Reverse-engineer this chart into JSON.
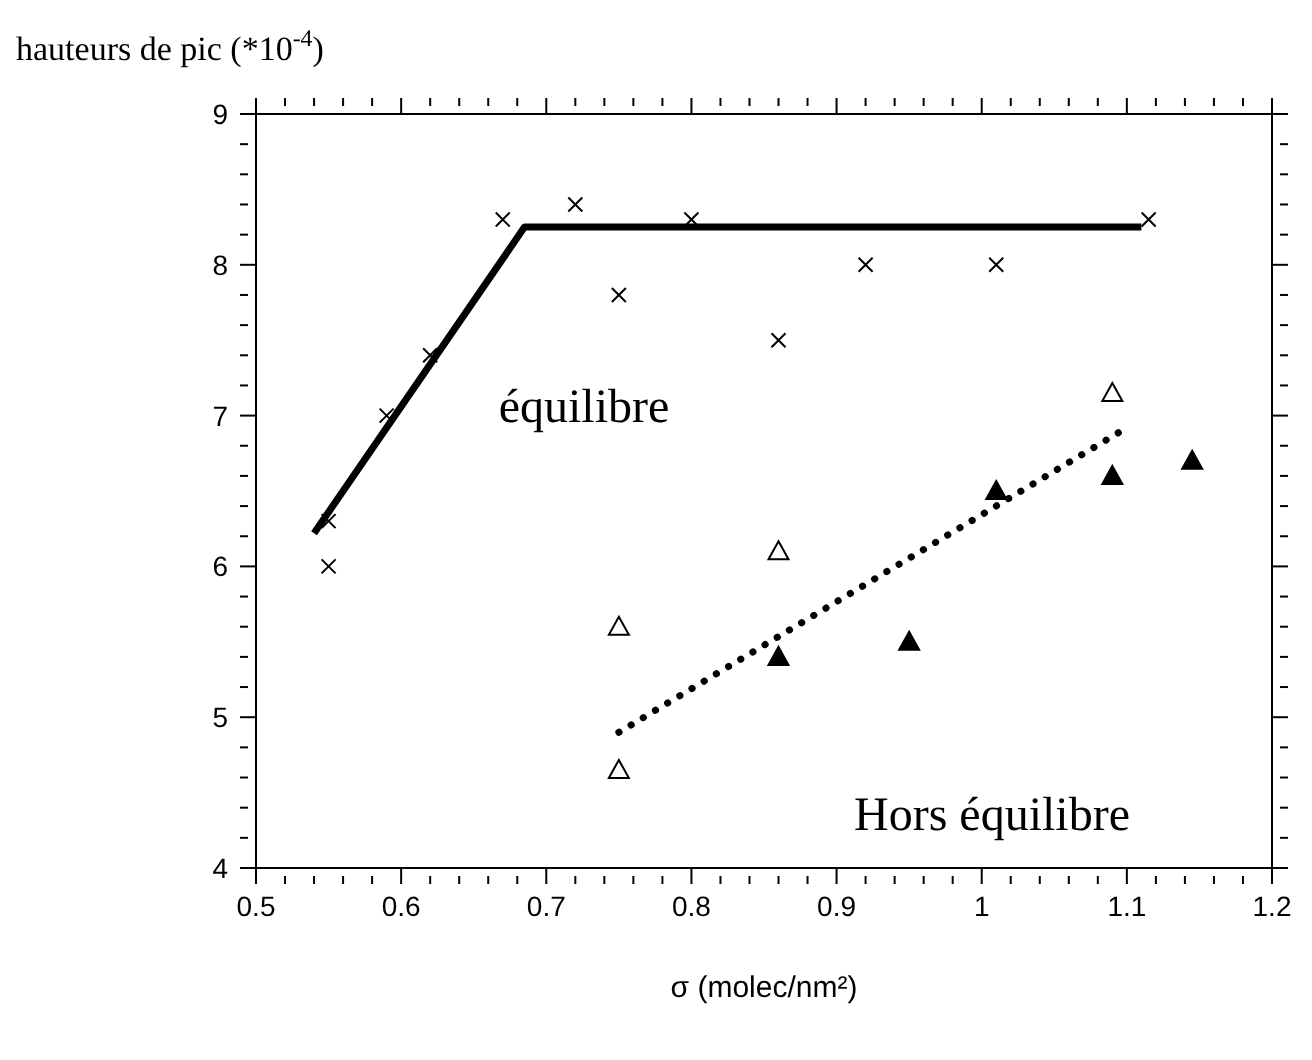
{
  "chart_data": {
    "type": "scatter",
    "ylabel": "hauteurs de pic (*10$^{-4}$)",
    "xlabel": "σ (molec/nm²)",
    "xlim": [
      0.5,
      1.2
    ],
    "ylim": [
      4,
      9
    ],
    "xticks": [
      0.5,
      {
        "value": 0.52,
        "label": null
      },
      {
        "value": 0.54,
        "label": null
      },
      {
        "value": 0.56,
        "label": null
      },
      {
        "value": 0.58,
        "label": null
      },
      0.6,
      {
        "value": 0.62,
        "label": null
      },
      {
        "value": 0.64,
        "label": null
      },
      {
        "value": 0.66,
        "label": null
      },
      {
        "value": 0.68,
        "label": null
      },
      0.7,
      {
        "value": 0.72,
        "label": null
      },
      {
        "value": 0.74,
        "label": null
      },
      {
        "value": 0.76,
        "label": null
      },
      {
        "value": 0.78,
        "label": null
      },
      0.8,
      {
        "value": 0.82,
        "label": null
      },
      {
        "value": 0.84,
        "label": null
      },
      {
        "value": 0.86,
        "label": null
      },
      {
        "value": 0.88,
        "label": null
      },
      0.9,
      {
        "value": 0.92,
        "label": null
      },
      {
        "value": 0.94,
        "label": null
      },
      {
        "value": 0.96,
        "label": null
      },
      {
        "value": 0.98,
        "label": null
      },
      1,
      {
        "value": 1.02,
        "label": null
      },
      {
        "value": 1.04,
        "label": null
      },
      {
        "value": 1.06,
        "label": null
      },
      {
        "value": 1.08,
        "label": null
      },
      1.1,
      {
        "value": 1.12,
        "label": null
      },
      {
        "value": 1.14,
        "label": null
      },
      {
        "value": 1.16,
        "label": null
      },
      {
        "value": 1.18,
        "label": null
      },
      1.2
    ],
    "yticks": [
      4,
      {
        "value": 4.2,
        "label": null
      },
      {
        "value": 4.4,
        "label": null
      },
      {
        "value": 4.6,
        "label": null
      },
      {
        "value": 4.8,
        "label": null
      },
      5,
      {
        "value": 5.2,
        "label": null
      },
      {
        "value": 5.4,
        "label": null
      },
      {
        "value": 5.6,
        "label": null
      },
      {
        "value": 5.8,
        "label": null
      },
      6,
      {
        "value": 6.2,
        "label": null
      },
      {
        "value": 6.4,
        "label": null
      },
      {
        "value": 6.6,
        "label": null
      },
      {
        "value": 6.8,
        "label": null
      },
      7,
      {
        "value": 7.2,
        "label": null
      },
      {
        "value": 7.4,
        "label": null
      },
      {
        "value": 7.6,
        "label": null
      },
      {
        "value": 7.8,
        "label": null
      },
      8,
      {
        "value": 8.2,
        "label": null
      },
      {
        "value": 8.4,
        "label": null
      },
      {
        "value": 8.6,
        "label": null
      },
      {
        "value": 8.8,
        "label": null
      },
      9
    ],
    "grid": false,
    "legend": false,
    "series": [
      {
        "marker": "cross",
        "color": "#000000",
        "x": [
          0.55,
          0.55,
          0.59,
          0.62,
          0.67,
          0.72,
          0.75,
          0.8,
          0.86,
          0.92,
          1.01,
          1.115
        ],
        "values": [
          6.3,
          6.0,
          7.0,
          7.4,
          8.3,
          8.4,
          7.8,
          8.3,
          7.5,
          8.0,
          8.0,
          8.3
        ]
      },
      {
        "marker": "triangle-open",
        "color": "#000000",
        "x": [
          0.75,
          0.75,
          0.86,
          1.09
        ],
        "values": [
          5.6,
          4.65,
          6.1,
          7.15
        ]
      },
      {
        "marker": "triangle",
        "color": "#000000",
        "x": [
          0.86,
          0.95,
          1.01,
          1.09,
          1.145
        ],
        "values": [
          5.4,
          5.5,
          6.5,
          6.6,
          6.7
        ]
      },
      {
        "type": "line",
        "line_style": "solid",
        "color": "#000000",
        "x": [
          0.54,
          0.685,
          1.11
        ],
        "values": [
          6.22,
          8.25,
          8.25
        ]
      },
      {
        "type": "line",
        "line_style": "dotted",
        "color": "#000000",
        "x": [
          0.75,
          1.1
        ],
        "values": [
          4.9,
          6.92
        ]
      }
    ],
    "annotations": [
      "équilibre",
      "Hors équilibre"
    ]
  }
}
